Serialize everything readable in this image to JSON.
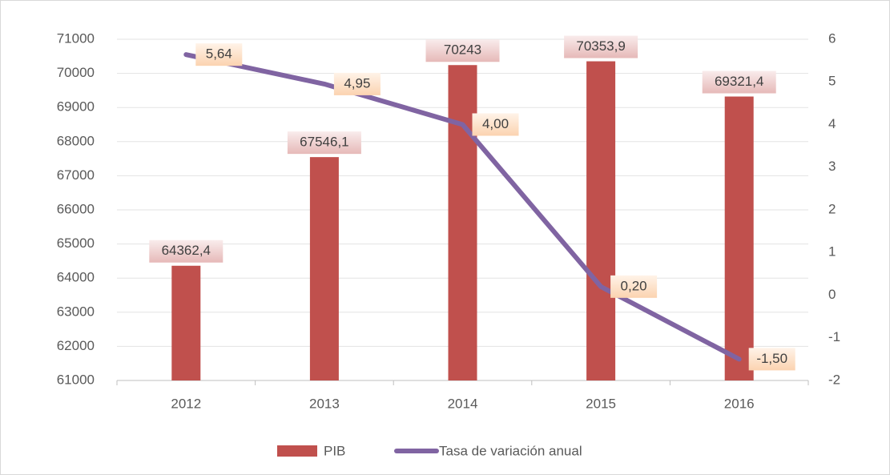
{
  "chart_data": {
    "type": "bar-line",
    "categories": [
      "2012",
      "2013",
      "2014",
      "2015",
      "2016"
    ],
    "series": [
      {
        "name": "PIB",
        "color": "#c0504d",
        "values": [
          64362.4,
          67546.1,
          70243,
          70353.9,
          69321.4
        ],
        "value_labels": [
          "64362,4",
          "67546,1",
          "70243",
          "70353,9",
          "69321,4"
        ]
      },
      {
        "name": "Tasa de variación anual",
        "color": "#8064a2",
        "axis": "y2",
        "values": [
          5.64,
          4.95,
          4.0,
          0.2,
          -1.5
        ],
        "value_labels": [
          "5,64",
          "4,95",
          "4,00",
          "0,20",
          "-1,50"
        ]
      }
    ],
    "ylim": [
      61000,
      71000
    ],
    "yticks": [
      61000,
      62000,
      63000,
      64000,
      65000,
      66000,
      67000,
      68000,
      69000,
      70000,
      71000
    ],
    "y2lim": [
      -2,
      6
    ],
    "y2ticks": [
      -2,
      -1,
      0,
      1,
      2,
      3,
      4,
      5,
      6
    ],
    "grid": true,
    "legend": "bottom"
  }
}
